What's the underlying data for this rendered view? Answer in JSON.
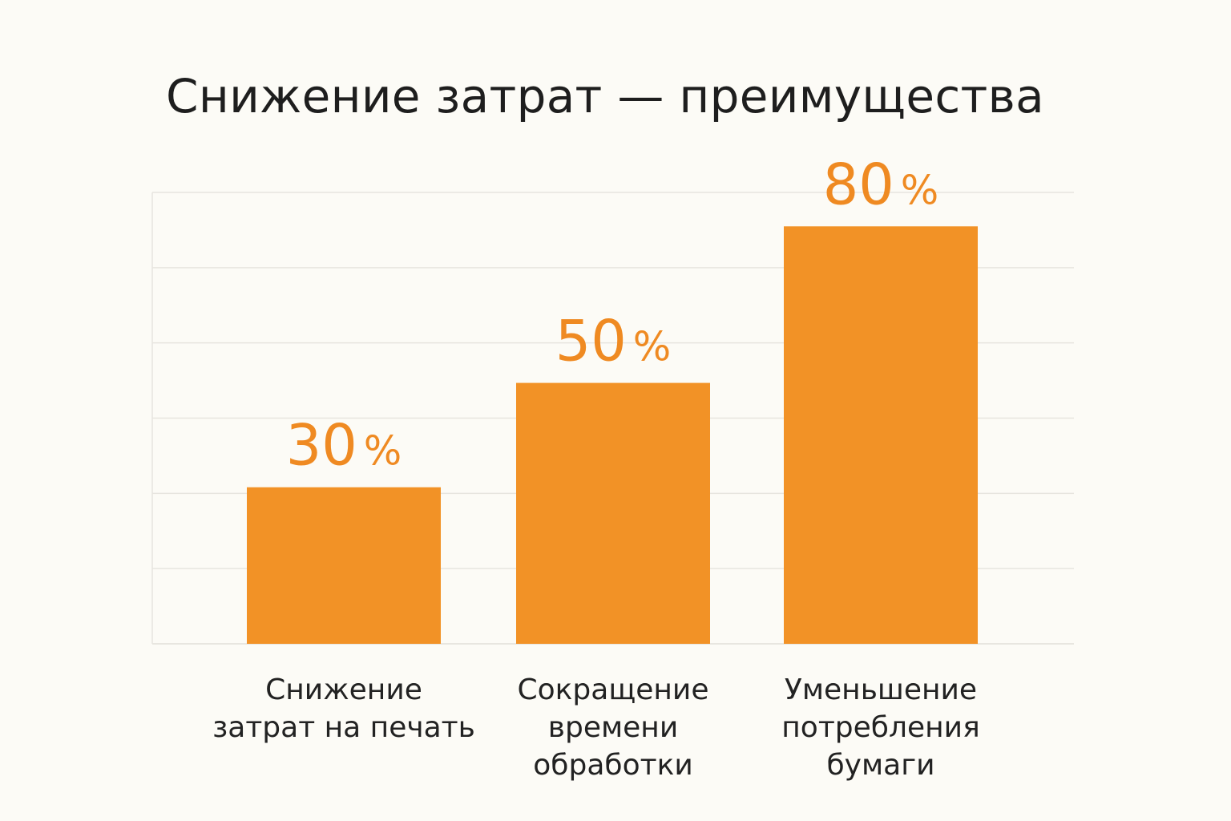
{
  "chart_data": {
    "type": "bar",
    "title": "Снижение затрат — преимущества",
    "xlabel": "",
    "ylabel": "",
    "categories": [
      [
        "Снижение",
        "затрат на печать"
      ],
      [
        "Сокращение",
        "времени",
        "обработки"
      ],
      [
        "Уменьшение",
        "потребления",
        "бумаги"
      ]
    ],
    "values": [
      30,
      50,
      80
    ],
    "value_labels": [
      {
        "number": "30",
        "unit": "%"
      },
      {
        "number": "50",
        "unit": "%"
      },
      {
        "number": "80",
        "unit": "%"
      }
    ],
    "ylim": [
      0,
      100
    ],
    "grid": true,
    "legend": "none",
    "colors": {
      "bar": "#f29226",
      "value_label": "#ef8a22",
      "grid": "#e7e5df",
      "background": "#fcfbf6",
      "title": "#1e1e1e"
    }
  }
}
